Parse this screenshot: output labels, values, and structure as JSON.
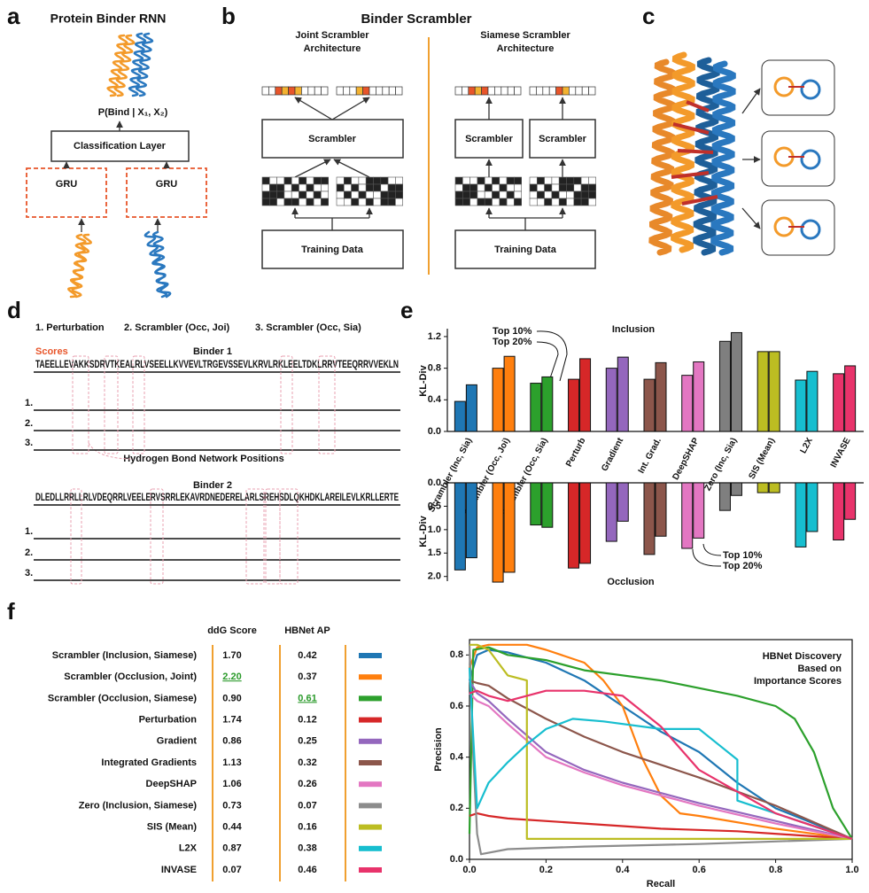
{
  "panel_labels": [
    "a",
    "b",
    "c",
    "d",
    "e",
    "f"
  ],
  "panel_a": {
    "title": "Protein Binder RNN",
    "probability": "P(Bind | X₁, X₂)",
    "classification": "Classification Layer",
    "gru": [
      "GRU",
      "GRU"
    ]
  },
  "panel_b": {
    "title": "Binder Scrambler",
    "joint": [
      "Joint Scrambler",
      "Architecture"
    ],
    "siamese": [
      "Siamese Scrambler",
      "Architecture"
    ],
    "scrambler": "Scrambler",
    "training": "Training Data"
  },
  "panel_d": {
    "methods": [
      "1. Perturbation",
      "2. Scrambler (Occ, Joi)",
      "3. Scrambler (Occ, Sia)"
    ],
    "scores": "Scores",
    "row_labels": [
      "1.",
      "2.",
      "3."
    ],
    "binders": [
      {
        "title": "Binder 1",
        "sequence": "TAEELLEVAKKSDRVTKEALRLVSEELLKVVEVLTRGEVSSEVLKRVLRKLEELTDKLRRVTEEQRRVVEKLN"
      },
      {
        "title": "Binder 2",
        "sequence": "DLEDLLRRLLRLVDEQRRLVEELERVSRRLEKAVRDNEDERELARLSREHSDLQKHDKLAREILEVLKRLLERTE"
      }
    ],
    "hbnet_note": "Hydrogen Bond Network Positions"
  },
  "chart_data": [
    {
      "type": "bar",
      "title": "Inclusion",
      "y_label": "KL-Div",
      "categories": [
        "Scrambler (Inc, Sia)",
        "Scrambler (Occ, Joi)",
        "Scrambler (Occ, Sia)",
        "Perturb",
        "Gradient",
        "Int. Grad.",
        "DeepSHAP",
        "Zero (Inc, Sia)",
        "SIS (Mean)",
        "L2X",
        "INVASE"
      ],
      "colors": [
        "#1f77b4",
        "#ff7f0e",
        "#2ca02c",
        "#d62728",
        "#9467bd",
        "#8c564b",
        "#e377c2",
        "#7f7f7f",
        "#bcbd22",
        "#17becf",
        "#e8336b"
      ],
      "series": [
        {
          "name": "Top 10%",
          "values": [
            0.38,
            0.8,
            0.61,
            0.66,
            0.8,
            0.66,
            0.71,
            1.14,
            1.01,
            0.65,
            0.73
          ]
        },
        {
          "name": "Top 20%",
          "values": [
            0.59,
            0.95,
            0.69,
            0.92,
            0.94,
            0.87,
            0.88,
            1.25,
            1.01,
            0.76,
            0.83
          ]
        }
      ],
      "ylim": [
        0,
        1.3
      ],
      "yticks": [
        {
          "value": 0,
          "label": "0.0"
        },
        0.4,
        0.8,
        1.2
      ]
    },
    {
      "type": "bar",
      "title": "Occlusion",
      "y_label": "KL-Div",
      "inverted": true,
      "colors": [
        "#1f77b4",
        "#ff7f0e",
        "#2ca02c",
        "#d62728",
        "#9467bd",
        "#8c564b",
        "#e377c2",
        "#7f7f7f",
        "#bcbd22",
        "#17becf",
        "#e8336b"
      ],
      "series": [
        {
          "name": "Top 10%",
          "values": [
            1.86,
            2.12,
            0.9,
            1.82,
            1.25,
            1.53,
            1.4,
            0.59,
            0.21,
            1.37,
            1.22
          ]
        },
        {
          "name": "Top 20%",
          "values": [
            1.6,
            1.91,
            0.95,
            1.72,
            0.82,
            1.14,
            1.18,
            0.27,
            0.21,
            1.04,
            0.78
          ]
        }
      ],
      "ylim": [
        0,
        2.1
      ],
      "yticks": [
        {
          "value": 0,
          "label": "0.0"
        },
        0.5,
        {
          "value": 1,
          "label": "1.0"
        },
        1.5,
        {
          "value": 2,
          "label": "2.0"
        }
      ]
    },
    {
      "type": "line",
      "annotation": [
        "HBNet Discovery",
        "Based on",
        "Importance Scores"
      ],
      "x_label": "Recall",
      "y_label": "Precision",
      "xlim": [
        0,
        1
      ],
      "ylim": [
        0,
        0.86
      ],
      "xticks": [
        {
          "value": 0,
          "label": "0.0"
        },
        0.2,
        0.4,
        0.6,
        0.8,
        {
          "value": 1,
          "label": "1.0"
        }
      ],
      "yticks": [
        {
          "value": 0,
          "label": "0.0"
        },
        0.2,
        0.4,
        0.6,
        0.8
      ],
      "series": [
        {
          "name": "Scrambler (Inclusion, Siamese)",
          "color": "#1f77b4",
          "x": [
            0,
            0.02,
            0.05,
            0.1,
            0.2,
            0.3,
            0.4,
            0.5,
            0.6,
            0.7,
            0.8,
            0.9,
            1.0
          ],
          "values": [
            0.7,
            0.8,
            0.82,
            0.81,
            0.77,
            0.7,
            0.6,
            0.5,
            0.42,
            0.3,
            0.2,
            0.14,
            0.08
          ]
        },
        {
          "name": "Scrambler (Occlusion, Joint)",
          "color": "#ff7f0e",
          "x": [
            0,
            0.02,
            0.05,
            0.1,
            0.15,
            0.2,
            0.3,
            0.35,
            0.4,
            0.45,
            0.5,
            0.55,
            0.6,
            0.8,
            1.0
          ],
          "values": [
            0.75,
            0.83,
            0.84,
            0.84,
            0.84,
            0.82,
            0.77,
            0.7,
            0.6,
            0.4,
            0.25,
            0.18,
            0.17,
            0.12,
            0.08
          ]
        },
        {
          "name": "Scrambler (Occlusion, Siamese)",
          "color": "#2ca02c",
          "x": [
            0,
            0.01,
            0.05,
            0.1,
            0.2,
            0.3,
            0.5,
            0.7,
            0.8,
            0.85,
            0.9,
            0.95,
            1.0
          ],
          "values": [
            0.1,
            0.82,
            0.83,
            0.8,
            0.78,
            0.74,
            0.7,
            0.64,
            0.6,
            0.55,
            0.42,
            0.2,
            0.08
          ]
        },
        {
          "name": "Perturbation",
          "color": "#d62728",
          "x": [
            0,
            0.02,
            0.05,
            0.1,
            0.3,
            0.5,
            0.7,
            0.9,
            1.0
          ],
          "values": [
            0.17,
            0.18,
            0.17,
            0.16,
            0.14,
            0.12,
            0.11,
            0.09,
            0.08
          ]
        },
        {
          "name": "Gradient",
          "color": "#9467bd",
          "x": [
            0,
            0.02,
            0.05,
            0.1,
            0.2,
            0.3,
            0.4,
            0.6,
            0.8,
            1.0
          ],
          "values": [
            0.7,
            0.65,
            0.62,
            0.55,
            0.42,
            0.35,
            0.3,
            0.22,
            0.15,
            0.08
          ]
        },
        {
          "name": "Integrated Gradients",
          "color": "#8c564b",
          "x": [
            0,
            0.02,
            0.05,
            0.1,
            0.2,
            0.3,
            0.4,
            0.6,
            0.8,
            1.0
          ],
          "values": [
            0.7,
            0.69,
            0.68,
            0.63,
            0.55,
            0.48,
            0.42,
            0.32,
            0.21,
            0.08
          ]
        },
        {
          "name": "DeepSHAP",
          "color": "#e377c2",
          "x": [
            0,
            0.02,
            0.05,
            0.1,
            0.2,
            0.3,
            0.4,
            0.6,
            0.8,
            1.0
          ],
          "values": [
            0.65,
            0.62,
            0.6,
            0.53,
            0.4,
            0.34,
            0.29,
            0.21,
            0.14,
            0.08
          ]
        },
        {
          "name": "Zero (Inclusion, Siamese)",
          "color": "#8c8c8c",
          "x": [
            0,
            0.01,
            0.02,
            0.03,
            0.1,
            0.3,
            0.6,
            1.0
          ],
          "values": [
            0.84,
            0.4,
            0.1,
            0.02,
            0.04,
            0.05,
            0.06,
            0.08
          ]
        },
        {
          "name": "SIS (Mean)",
          "color": "#bcbd22",
          "x": [
            0,
            0.02,
            0.05,
            0.1,
            0.15,
            0.15,
            0.4,
            0.7,
            1.0
          ],
          "values": [
            0.84,
            0.84,
            0.82,
            0.72,
            0.7,
            0.08,
            0.08,
            0.08,
            0.08
          ]
        },
        {
          "name": "L2X",
          "color": "#17becf",
          "x": [
            0,
            0.02,
            0.05,
            0.1,
            0.15,
            0.2,
            0.27,
            0.35,
            0.5,
            0.6,
            0.65,
            0.7,
            0.7,
            0.8,
            1.0
          ],
          "values": [
            0.75,
            0.2,
            0.3,
            0.38,
            0.45,
            0.51,
            0.55,
            0.54,
            0.51,
            0.51,
            0.45,
            0.39,
            0.23,
            0.18,
            0.08
          ]
        },
        {
          "name": "INVASE",
          "color": "#e8336b",
          "x": [
            0,
            0.02,
            0.05,
            0.1,
            0.2,
            0.3,
            0.4,
            0.5,
            0.6,
            0.8,
            1.0
          ],
          "values": [
            0.65,
            0.66,
            0.64,
            0.62,
            0.66,
            0.66,
            0.64,
            0.52,
            0.35,
            0.18,
            0.08
          ]
        }
      ]
    }
  ],
  "panel_f_table": {
    "headers": [
      "ddG Score",
      "HBNet AP"
    ],
    "rows": [
      [
        "1.70",
        "0.42"
      ],
      [
        "2.20",
        "0.37"
      ],
      [
        "0.90",
        "0.61"
      ],
      [
        "1.74",
        "0.12"
      ],
      [
        "0.86",
        "0.25"
      ],
      [
        "1.13",
        "0.32"
      ],
      [
        "1.06",
        "0.26"
      ],
      [
        "0.73",
        "0.07"
      ],
      [
        "0.44",
        "0.16"
      ],
      [
        "0.87",
        "0.38"
      ],
      [
        "0.07",
        "0.46"
      ]
    ],
    "underlined": [
      [
        1,
        0
      ],
      [
        2,
        1
      ]
    ]
  }
}
